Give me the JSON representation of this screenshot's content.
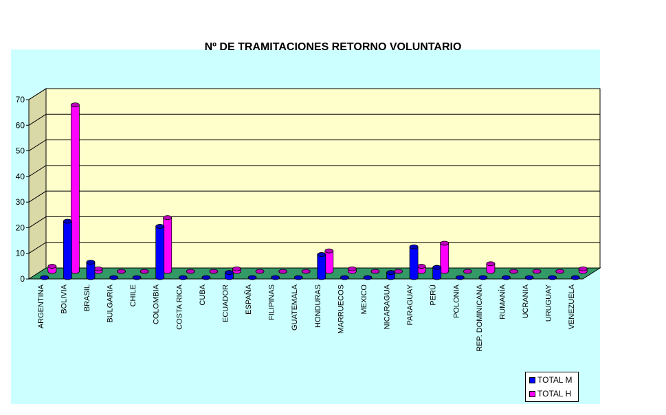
{
  "chart_data": {
    "type": "bar",
    "title": "Nº DE TRAMITACIONES RETORNO VOLUNTARIO",
    "xlabel": "",
    "ylabel": "",
    "ylim": [
      0,
      70
    ],
    "yticks": [
      0,
      10,
      20,
      30,
      40,
      50,
      60,
      70
    ],
    "grid": true,
    "legend": "bottom-right",
    "categories": [
      "ARGENTINA",
      "BOLIVIA",
      "BRASIL",
      "BULGARIA",
      "CHILE",
      "COLOMBIA",
      "COSTA RICA",
      "CUBA",
      "ECUADOR",
      "ESPAÑA",
      "FILIPINAS",
      "GUATEMALA",
      "HONDURAS",
      "MARRUECOS",
      "MEXICO",
      "NICARAGUA",
      "PARAGUAY",
      "PERÚ",
      "POLONIA",
      "REP. DOMINICANA",
      "RUMANÍA",
      "UCRANIA",
      "URUGUAY",
      "VENEZUELA"
    ],
    "series": [
      {
        "name": "TOTAL M",
        "color": "#0000ff",
        "values": [
          0,
          22,
          6,
          0,
          0,
          20,
          0,
          0,
          2,
          0,
          0,
          0,
          9,
          0,
          0,
          2,
          12,
          4,
          0,
          0,
          0,
          0,
          0,
          0
        ]
      },
      {
        "name": "TOTAL H",
        "color": "#ff00ff",
        "values": [
          2,
          65,
          1,
          0,
          0,
          21,
          0,
          0,
          1,
          0,
          0,
          0,
          8,
          1,
          0,
          0,
          2,
          11,
          0,
          3,
          0,
          0,
          0,
          1
        ]
      }
    ],
    "colors": {
      "plot_background": "#ffffcc",
      "floor": "#339966",
      "area_background": "#ccffff"
    }
  }
}
